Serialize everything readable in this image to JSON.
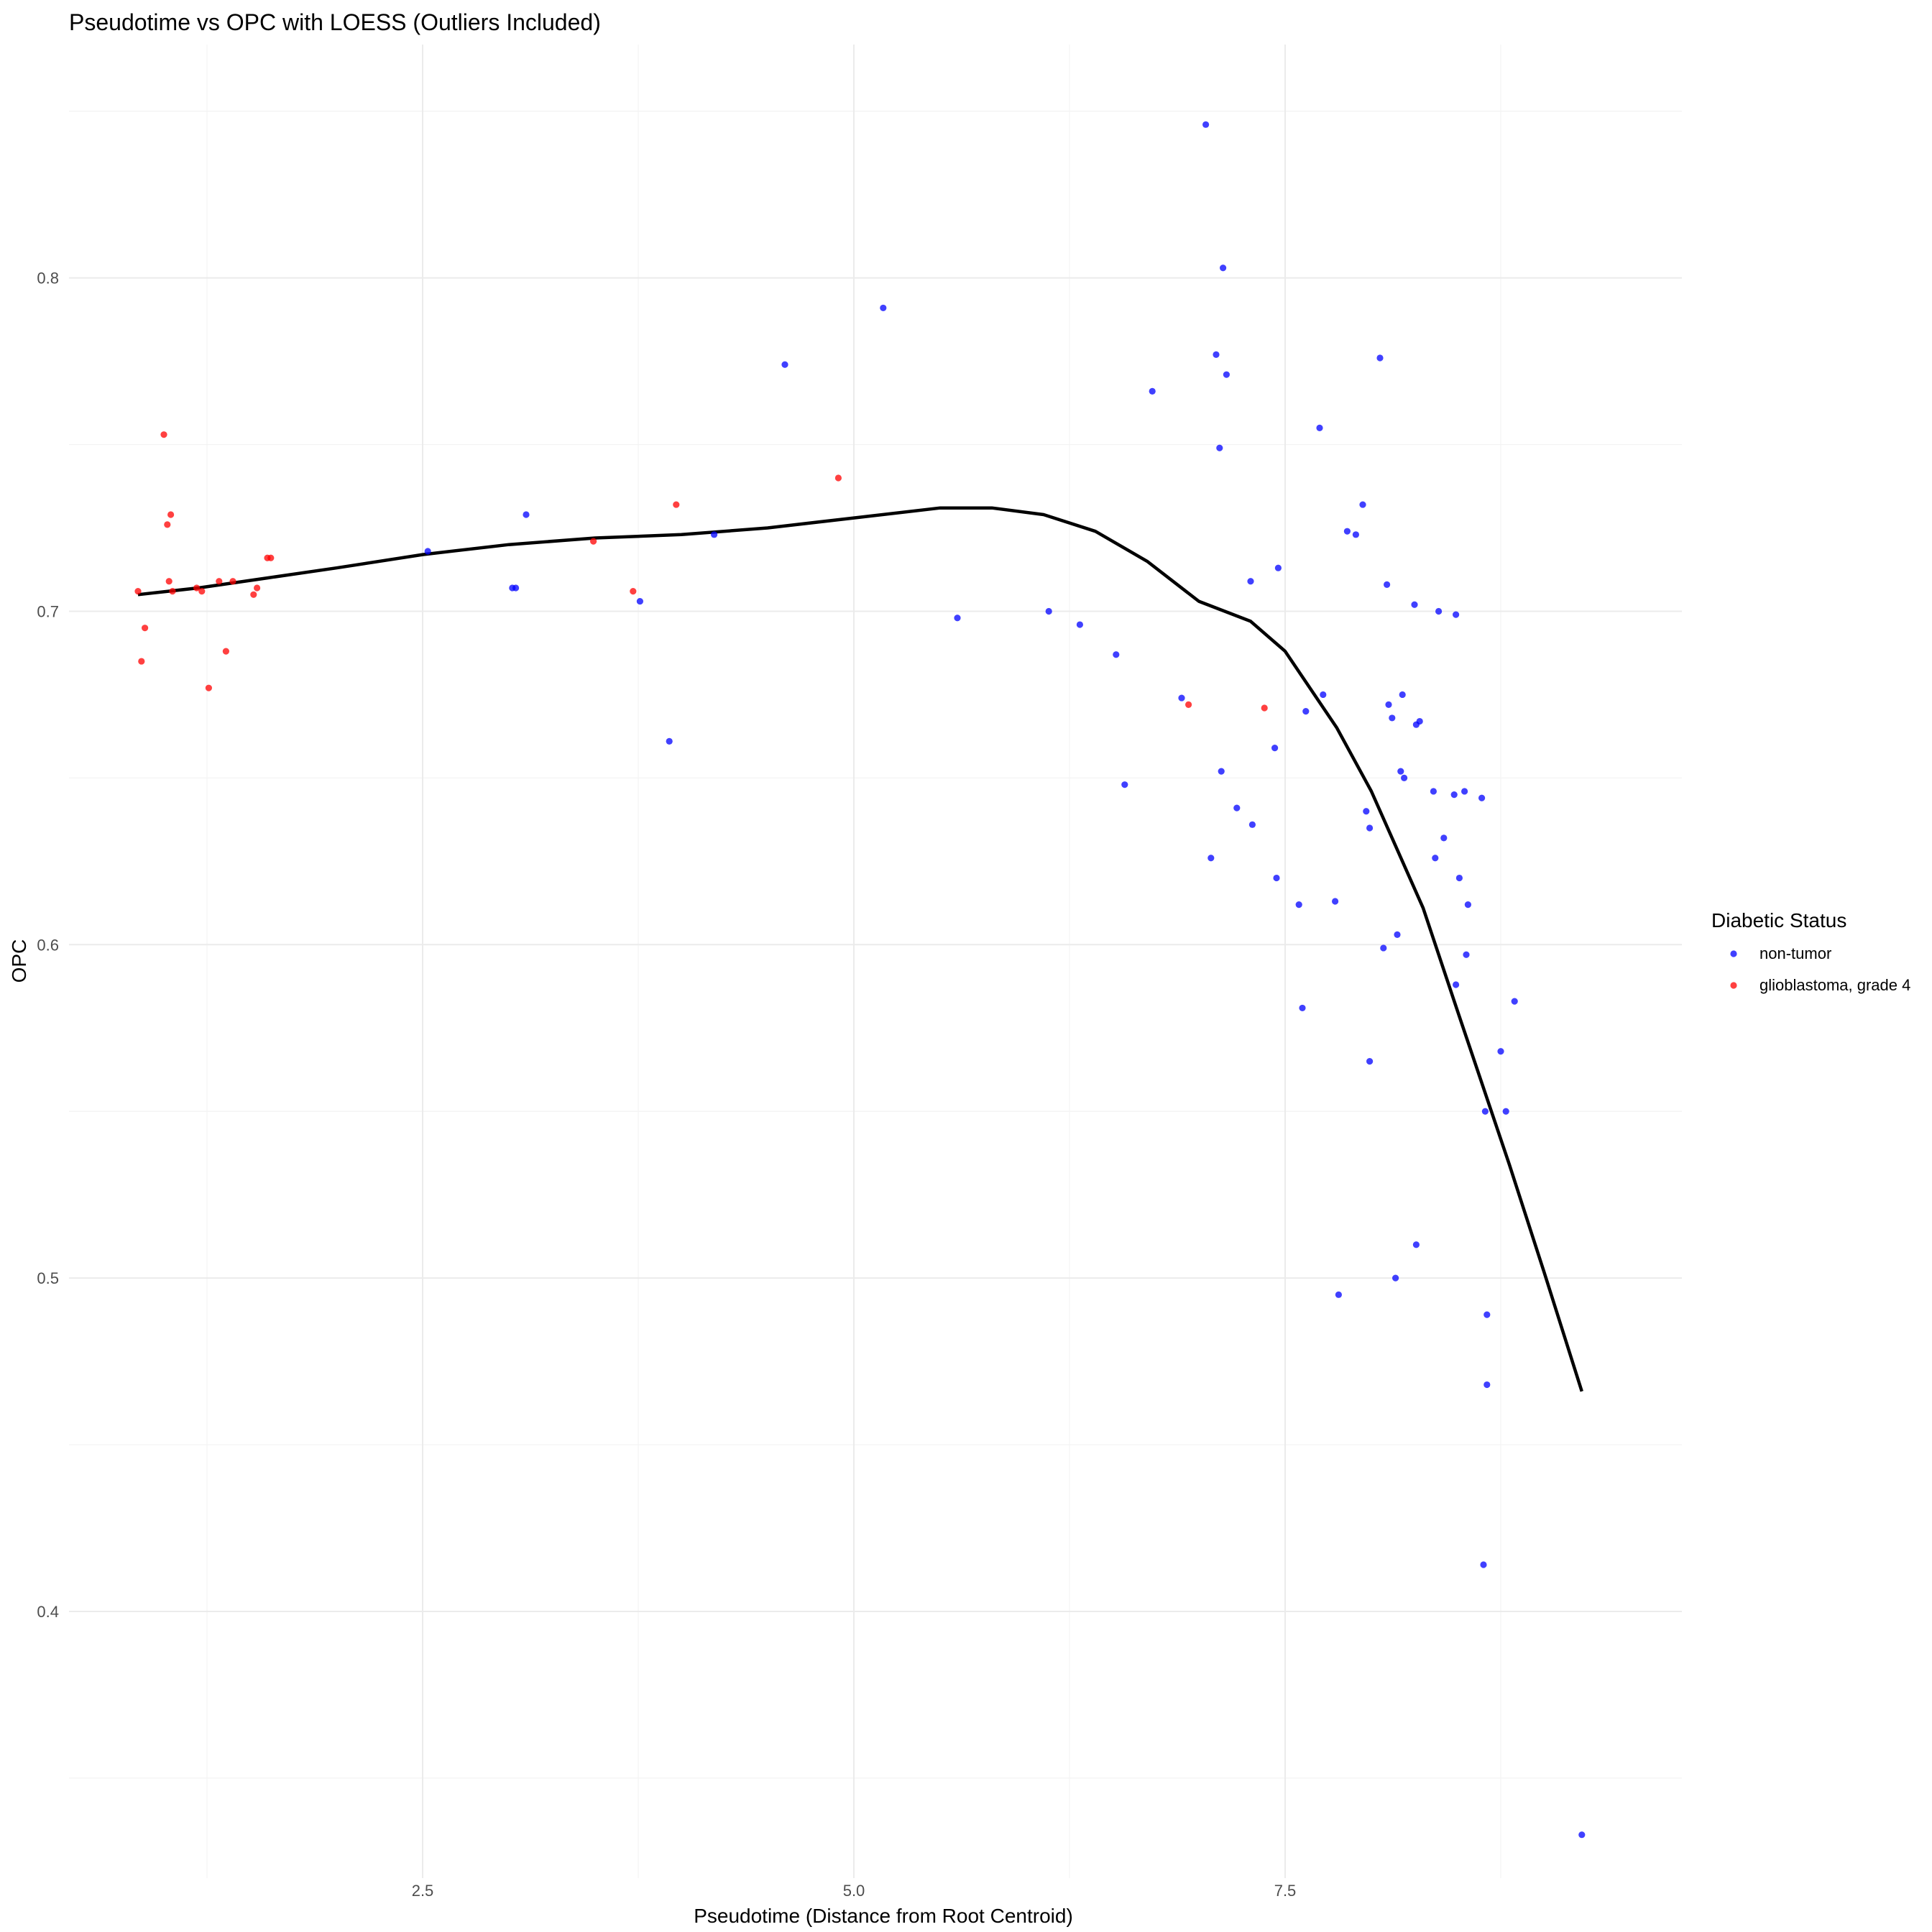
{
  "chart_data": {
    "type": "scatter",
    "title": "Pseudotime vs OPC with LOESS (Outliers Included)",
    "xlabel": "Pseudotime (Distance from Root Centroid)",
    "ylabel": "OPC",
    "xlim": [
      0.45,
      9.8
    ],
    "ylim": [
      0.32,
      0.87
    ],
    "x_ticks": [
      2.5,
      5.0,
      7.5
    ],
    "x_tick_labels": [
      "2.5",
      "5.0",
      "7.5"
    ],
    "y_ticks": [
      0.4,
      0.5,
      0.6,
      0.7,
      0.8
    ],
    "y_tick_labels": [
      "0.4",
      "0.5",
      "0.6",
      "0.7",
      "0.8"
    ],
    "grid": true,
    "legend": {
      "title": "Diabetic Status",
      "position": "right"
    },
    "series": [
      {
        "name": "non-tumor",
        "color": "#0000ff",
        "points": [
          [
            2.53,
            0.718
          ],
          [
            3.02,
            0.707
          ],
          [
            3.04,
            0.707
          ],
          [
            3.1,
            0.729
          ],
          [
            3.76,
            0.703
          ],
          [
            3.93,
            0.661
          ],
          [
            4.19,
            0.723
          ],
          [
            4.6,
            0.774
          ],
          [
            5.17,
            0.791
          ],
          [
            5.6,
            0.698
          ],
          [
            6.13,
            0.7
          ],
          [
            6.31,
            0.696
          ],
          [
            6.52,
            0.687
          ],
          [
            6.57,
            0.648
          ],
          [
            6.73,
            0.766
          ],
          [
            6.9,
            0.674
          ],
          [
            7.04,
            0.846
          ],
          [
            7.07,
            0.626
          ],
          [
            7.1,
            0.777
          ],
          [
            7.12,
            0.749
          ],
          [
            7.13,
            0.652
          ],
          [
            7.14,
            0.803
          ],
          [
            7.16,
            0.771
          ],
          [
            7.22,
            0.641
          ],
          [
            7.3,
            0.709
          ],
          [
            7.31,
            0.636
          ],
          [
            7.44,
            0.659
          ],
          [
            7.45,
            0.62
          ],
          [
            7.46,
            0.713
          ],
          [
            7.58,
            0.612
          ],
          [
            7.6,
            0.581
          ],
          [
            7.62,
            0.67
          ],
          [
            7.7,
            0.755
          ],
          [
            7.72,
            0.675
          ],
          [
            7.79,
            0.613
          ],
          [
            7.81,
            0.495
          ],
          [
            7.86,
            0.724
          ],
          [
            7.91,
            0.723
          ],
          [
            7.95,
            0.732
          ],
          [
            7.97,
            0.64
          ],
          [
            7.99,
            0.635
          ],
          [
            7.99,
            0.565
          ],
          [
            8.05,
            0.776
          ],
          [
            8.07,
            0.599
          ],
          [
            8.09,
            0.708
          ],
          [
            8.1,
            0.672
          ],
          [
            8.12,
            0.668
          ],
          [
            8.14,
            0.5
          ],
          [
            8.15,
            0.603
          ],
          [
            8.17,
            0.652
          ],
          [
            8.18,
            0.675
          ],
          [
            8.19,
            0.65
          ],
          [
            8.25,
            0.702
          ],
          [
            8.26,
            0.666
          ],
          [
            8.26,
            0.51
          ],
          [
            8.28,
            0.667
          ],
          [
            8.36,
            0.646
          ],
          [
            8.37,
            0.626
          ],
          [
            8.39,
            0.7
          ],
          [
            8.42,
            0.632
          ],
          [
            8.48,
            0.645
          ],
          [
            8.49,
            0.699
          ],
          [
            8.49,
            0.588
          ],
          [
            8.51,
            0.62
          ],
          [
            8.54,
            0.646
          ],
          [
            8.55,
            0.597
          ],
          [
            8.56,
            0.612
          ],
          [
            8.64,
            0.644
          ],
          [
            8.66,
            0.55
          ],
          [
            8.67,
            0.489
          ],
          [
            8.67,
            0.468
          ],
          [
            8.65,
            0.414
          ],
          [
            8.75,
            0.568
          ],
          [
            8.78,
            0.55
          ],
          [
            8.83,
            0.583
          ],
          [
            9.22,
            0.333
          ]
        ]
      },
      {
        "name": "glioblastoma, grade 4",
        "color": "#ff0000",
        "points": [
          [
            0.85,
            0.706
          ],
          [
            0.87,
            0.685
          ],
          [
            0.89,
            0.695
          ],
          [
            1.0,
            0.753
          ],
          [
            1.02,
            0.726
          ],
          [
            1.03,
            0.709
          ],
          [
            1.04,
            0.729
          ],
          [
            1.05,
            0.706
          ],
          [
            1.19,
            0.707
          ],
          [
            1.22,
            0.706
          ],
          [
            1.26,
            0.677
          ],
          [
            1.32,
            0.709
          ],
          [
            1.36,
            0.688
          ],
          [
            1.4,
            0.709
          ],
          [
            1.52,
            0.705
          ],
          [
            1.54,
            0.707
          ],
          [
            1.6,
            0.716
          ],
          [
            1.62,
            0.716
          ],
          [
            3.49,
            0.721
          ],
          [
            3.72,
            0.706
          ],
          [
            3.97,
            0.732
          ],
          [
            4.91,
            0.74
          ],
          [
            6.94,
            0.672
          ],
          [
            7.38,
            0.671
          ]
        ]
      }
    ],
    "loess": {
      "color": "#000000",
      "points": [
        [
          0.85,
          0.705
        ],
        [
          1.2,
          0.707
        ],
        [
          1.6,
          0.71
        ],
        [
          2.0,
          0.713
        ],
        [
          2.5,
          0.717
        ],
        [
          3.0,
          0.72
        ],
        [
          3.5,
          0.722
        ],
        [
          4.0,
          0.723
        ],
        [
          4.5,
          0.725
        ],
        [
          5.0,
          0.728
        ],
        [
          5.5,
          0.731
        ],
        [
          5.8,
          0.731
        ],
        [
          6.1,
          0.729
        ],
        [
          6.4,
          0.724
        ],
        [
          6.7,
          0.715
        ],
        [
          7.0,
          0.703
        ],
        [
          7.3,
          0.697
        ],
        [
          7.5,
          0.688
        ],
        [
          7.8,
          0.665
        ],
        [
          8.0,
          0.646
        ],
        [
          8.3,
          0.611
        ],
        [
          8.5,
          0.58
        ],
        [
          8.8,
          0.534
        ],
        [
          9.0,
          0.502
        ],
        [
          9.22,
          0.466
        ]
      ]
    }
  }
}
